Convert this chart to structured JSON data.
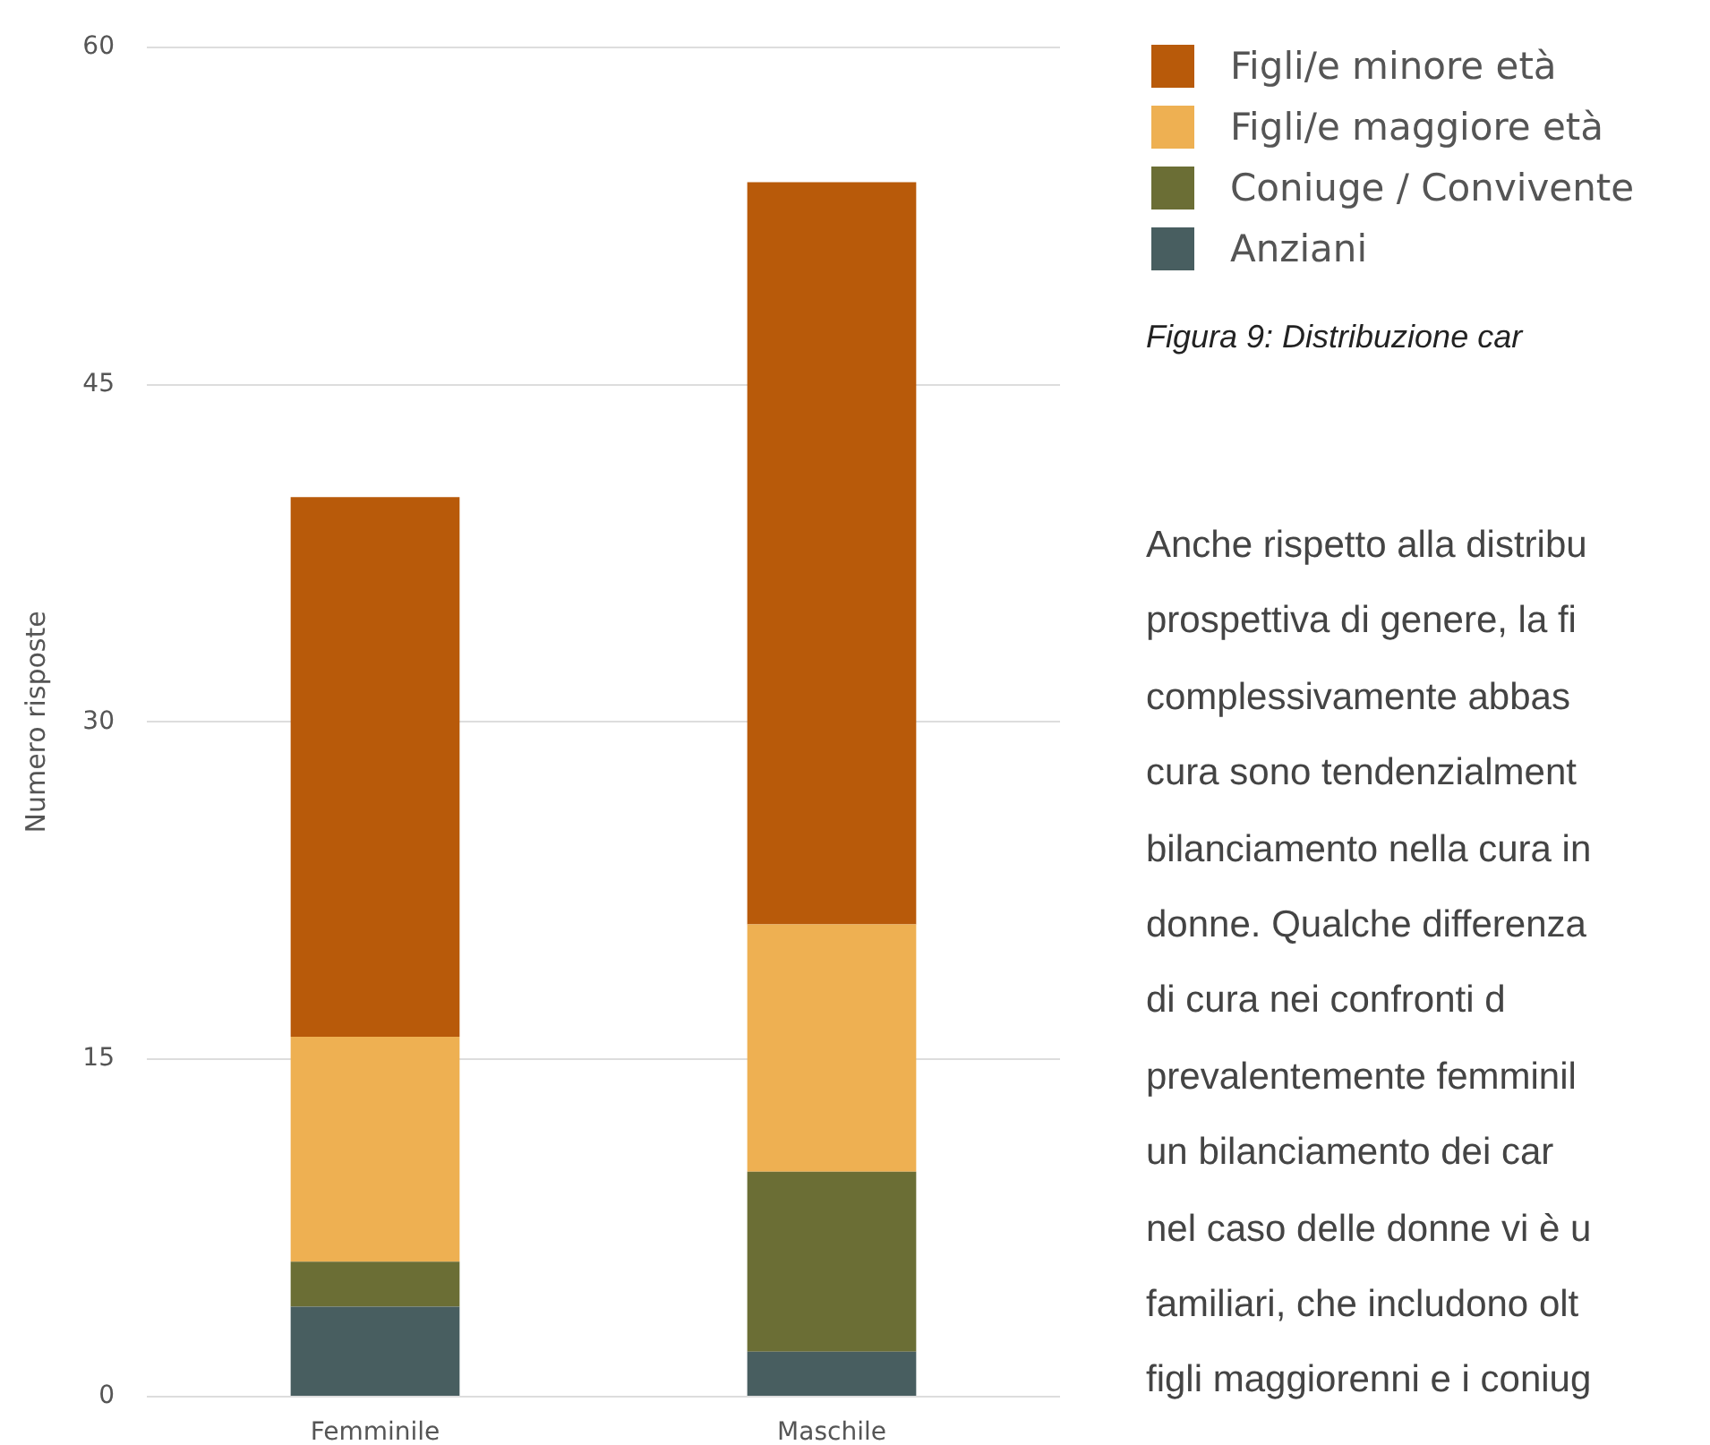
{
  "chart_data": {
    "type": "bar",
    "stacked": true,
    "ylabel": "Numero risposte",
    "categories": [
      "Femminile",
      "Maschile"
    ],
    "series": [
      {
        "name": "Anziani",
        "color": "#485e60",
        "values": [
          4,
          2
        ]
      },
      {
        "name": "Coniuge / Convivente",
        "color": "#6b6e35",
        "values": [
          2,
          8
        ]
      },
      {
        "name": "Figli/e maggiore età",
        "color": "#eeb052",
        "values": [
          10,
          11
        ]
      },
      {
        "name": "Figli/e minore età",
        "color": "#b85a0a",
        "values": [
          24,
          33
        ]
      }
    ],
    "ylim": [
      0,
      60
    ],
    "yticks": [
      0,
      15,
      30,
      45,
      60
    ],
    "grid": "y",
    "legend": "top right",
    "annotations": [
      "Figura 9: Distribuzione car",
      "Anche rispetto alla distribu",
      "prospettiva di genere, la fi",
      "complessivamente abbas",
      "cura sono tendenzialment",
      "bilanciamento nella cura in",
      "donne. Qualche differenza",
      "di cura nei confronti d",
      "prevalentemente femminil",
      "un bilanciamento dei car",
      "nel caso delle donne vi è u",
      "familiari, che includono olt",
      "figli maggiorenni e i coniug"
    ]
  }
}
